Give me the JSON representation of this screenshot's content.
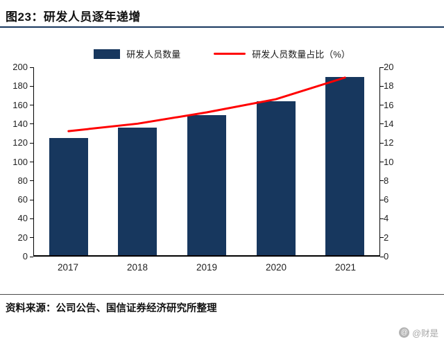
{
  "header": {
    "title": "图23：研发人员逐年递增"
  },
  "legend": {
    "bar_label": "研发人员数量",
    "line_label": "研发人员数量占比（%）"
  },
  "chart_data": {
    "type": "bar",
    "subtype": "bar+line combo with dual y-axes",
    "categories": [
      "2017",
      "2018",
      "2019",
      "2020",
      "2021"
    ],
    "series": [
      {
        "name": "研发人员数量",
        "type": "bar",
        "axis": "left",
        "color": "#17375E",
        "values": [
          124,
          135,
          148,
          163,
          188
        ]
      },
      {
        "name": "研发人员数量占比（%）",
        "type": "line",
        "axis": "right",
        "color": "#FF0000",
        "values": [
          13.2,
          14.0,
          15.2,
          16.6,
          18.9
        ]
      }
    ],
    "left_axis": {
      "min": 0,
      "max": 200,
      "step": 20,
      "ticks": [
        "0",
        "20",
        "40",
        "60",
        "80",
        "100",
        "120",
        "140",
        "160",
        "180",
        "200"
      ]
    },
    "right_axis": {
      "min": 0,
      "max": 20,
      "step": 2,
      "ticks": [
        "0",
        "2",
        "4",
        "6",
        "8",
        "10",
        "12",
        "14",
        "16",
        "18",
        "20"
      ]
    },
    "grid": false,
    "legend_position": "top"
  },
  "footer": {
    "source": "资料来源：公司公告、国信证券经济研究所整理"
  },
  "watermark": {
    "icon": "at-circle-icon",
    "text": "@财是"
  },
  "colors": {
    "bar": "#17375E",
    "line": "#FF0000",
    "title_rule": "#17375E"
  }
}
